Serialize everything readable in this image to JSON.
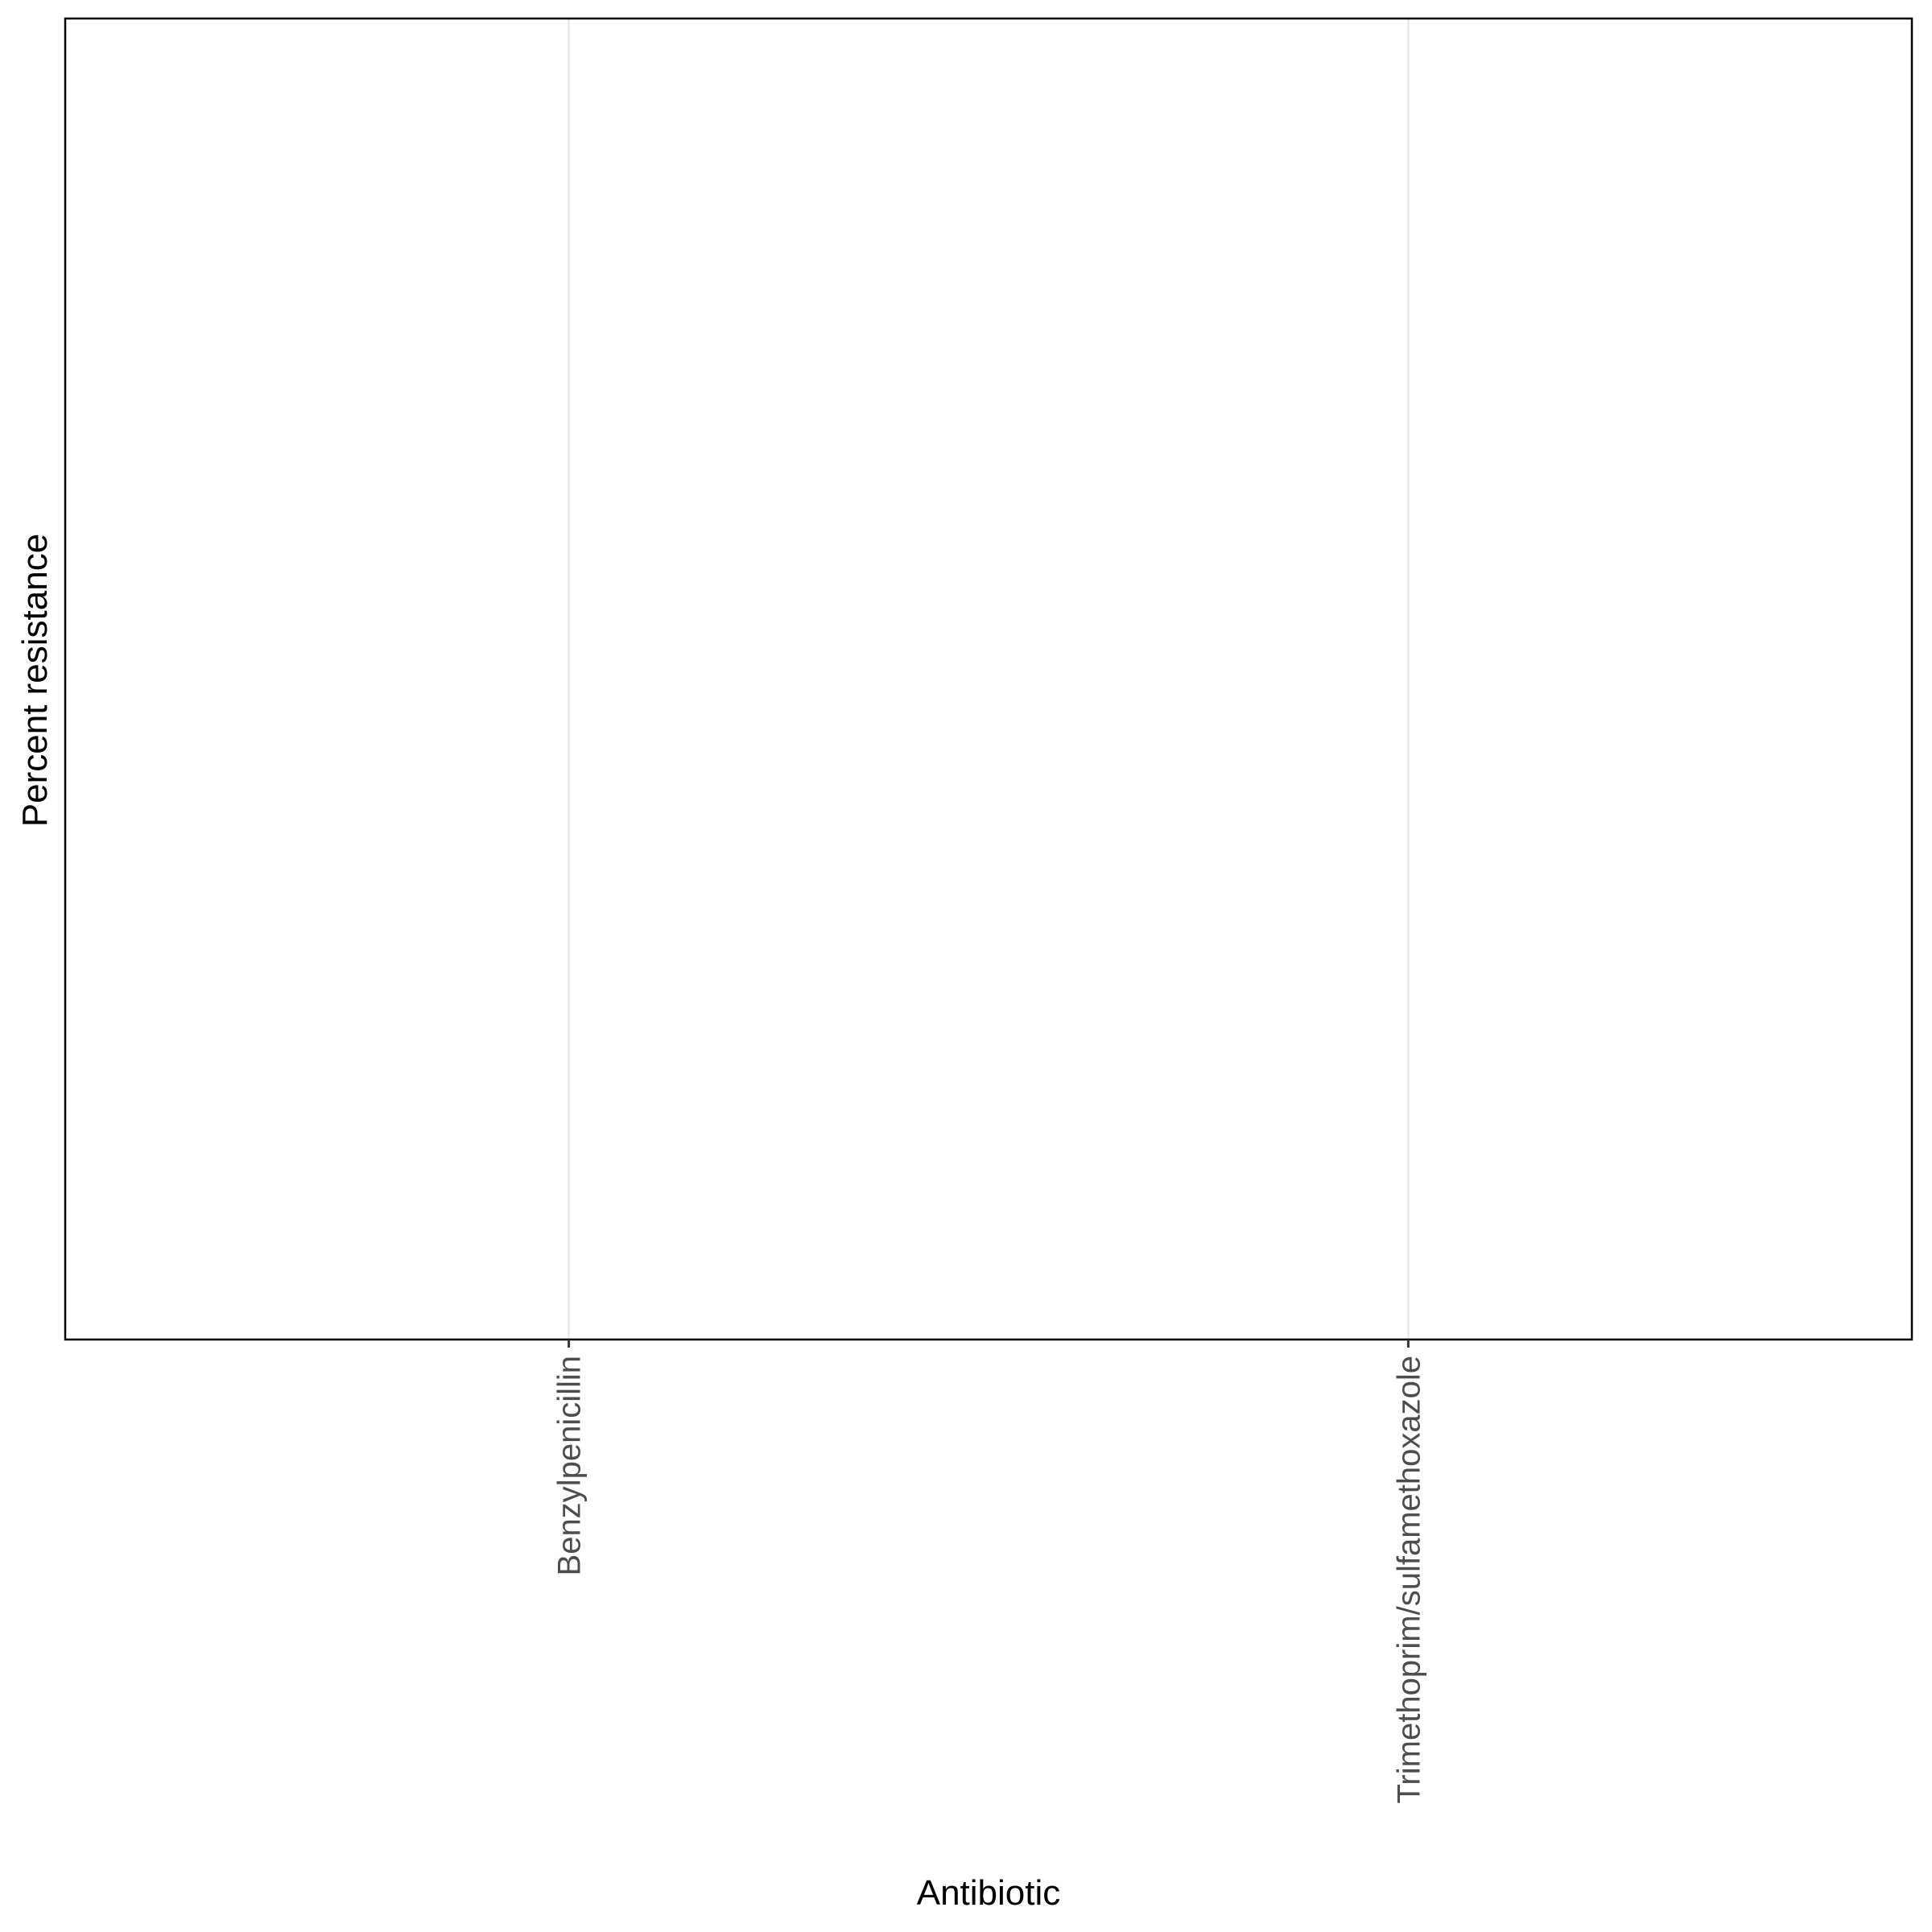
{
  "chart_data": {
    "type": "bar",
    "categories": [
      "Benzylpenicillin",
      "Trimethoprim/sulfamethoxazole"
    ],
    "xlabel": "Antibiotic",
    "ylabel": "Percent resistance",
    "grid": true
  }
}
